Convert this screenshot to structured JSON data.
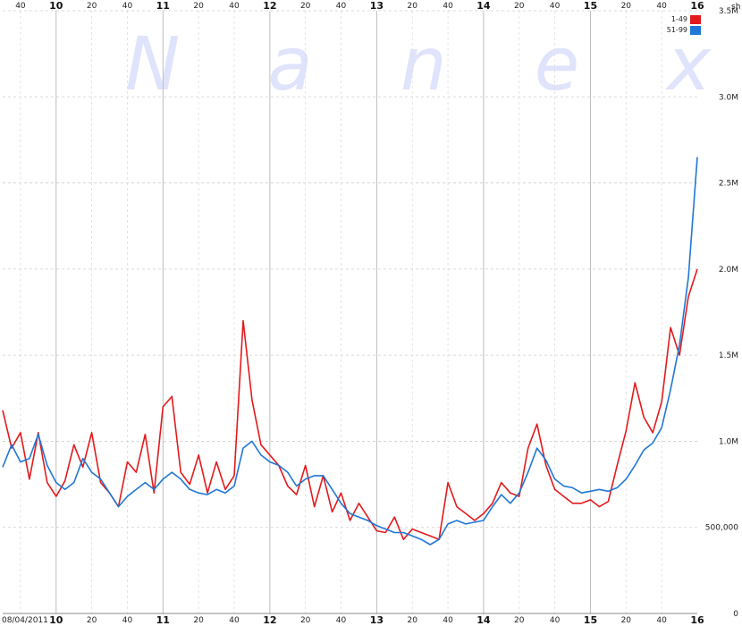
{
  "watermark": "N a n e x",
  "y_unit_label": "sh",
  "date_label": "08/04/2011",
  "chart_data": {
    "type": "line",
    "y_unit": "sh",
    "ylim": [
      0,
      3500000
    ],
    "y_ticks": [
      {
        "value": 0,
        "label": "0"
      },
      {
        "value": 500000,
        "label": "500,000"
      },
      {
        "value": 1000000,
        "label": "1.0M"
      },
      {
        "value": 1500000,
        "label": "1.5M"
      },
      {
        "value": 2000000,
        "label": "2.0M"
      },
      {
        "value": 2500000,
        "label": "2.5M"
      },
      {
        "value": 3000000,
        "label": "3.0M"
      },
      {
        "value": 3500000,
        "label": "3.5M"
      }
    ],
    "x_range_minutes": [
      570,
      960
    ],
    "x_major_ticks": [
      {
        "value": 600,
        "label": "10"
      },
      {
        "value": 660,
        "label": "11"
      },
      {
        "value": 720,
        "label": "12"
      },
      {
        "value": 780,
        "label": "13"
      },
      {
        "value": 840,
        "label": "14"
      },
      {
        "value": 900,
        "label": "15"
      },
      {
        "value": 960,
        "label": "16"
      }
    ],
    "x_minor_ticks": [
      {
        "value": 580,
        "label": "40"
      },
      {
        "value": 620,
        "label": "20"
      },
      {
        "value": 640,
        "label": "40"
      },
      {
        "value": 680,
        "label": "20"
      },
      {
        "value": 700,
        "label": "40"
      },
      {
        "value": 740,
        "label": "20"
      },
      {
        "value": 760,
        "label": "40"
      },
      {
        "value": 800,
        "label": "20"
      },
      {
        "value": 820,
        "label": "40"
      },
      {
        "value": 860,
        "label": "20"
      },
      {
        "value": 880,
        "label": "40"
      },
      {
        "value": 920,
        "label": "20"
      },
      {
        "value": 940,
        "label": "40"
      }
    ],
    "grid": true,
    "legend_position": "top-right",
    "series": [
      {
        "name": "1-49",
        "color": "#e31a1c",
        "x": [
          570,
          575,
          580,
          585,
          590,
          595,
          600,
          605,
          610,
          615,
          620,
          625,
          630,
          635,
          640,
          645,
          650,
          655,
          660,
          665,
          670,
          675,
          680,
          685,
          690,
          695,
          700,
          705,
          710,
          715,
          720,
          725,
          730,
          735,
          740,
          745,
          750,
          755,
          760,
          765,
          770,
          775,
          780,
          785,
          790,
          795,
          800,
          805,
          810,
          815,
          820,
          825,
          830,
          835,
          840,
          845,
          850,
          855,
          860,
          865,
          870,
          875,
          880,
          885,
          890,
          895,
          900,
          905,
          910,
          915,
          920,
          925,
          930,
          935,
          940,
          945,
          950,
          955,
          960
        ],
        "values": [
          1180000,
          960000,
          1050000,
          780000,
          1050000,
          760000,
          680000,
          770000,
          980000,
          850000,
          1050000,
          760000,
          700000,
          620000,
          880000,
          820000,
          1040000,
          700000,
          1200000,
          1260000,
          820000,
          750000,
          920000,
          700000,
          880000,
          720000,
          800000,
          1700000,
          1240000,
          980000,
          920000,
          860000,
          740000,
          690000,
          860000,
          620000,
          800000,
          590000,
          700000,
          540000,
          640000,
          560000,
          480000,
          470000,
          560000,
          430000,
          490000,
          470000,
          450000,
          430000,
          760000,
          620000,
          580000,
          540000,
          580000,
          640000,
          760000,
          700000,
          680000,
          960000,
          1100000,
          860000,
          720000,
          680000,
          640000,
          640000,
          660000,
          620000,
          650000,
          860000,
          1060000,
          1340000,
          1140000,
          1050000,
          1230000,
          1660000,
          1500000,
          1840000,
          2000000
        ]
      },
      {
        "name": "51-99",
        "color": "#1f77d6",
        "x": [
          570,
          575,
          580,
          585,
          590,
          595,
          600,
          605,
          610,
          615,
          620,
          625,
          630,
          635,
          640,
          645,
          650,
          655,
          660,
          665,
          670,
          675,
          680,
          685,
          690,
          695,
          700,
          705,
          710,
          715,
          720,
          725,
          730,
          735,
          740,
          745,
          750,
          755,
          760,
          765,
          770,
          775,
          780,
          785,
          790,
          795,
          800,
          805,
          810,
          815,
          820,
          825,
          830,
          835,
          840,
          845,
          850,
          855,
          860,
          865,
          870,
          875,
          880,
          885,
          890,
          895,
          900,
          905,
          910,
          915,
          920,
          925,
          930,
          935,
          940,
          945,
          950,
          955,
          960
        ],
        "values": [
          850000,
          980000,
          880000,
          900000,
          1040000,
          860000,
          760000,
          720000,
          760000,
          900000,
          820000,
          780000,
          700000,
          620000,
          680000,
          720000,
          760000,
          720000,
          780000,
          820000,
          780000,
          720000,
          700000,
          690000,
          720000,
          700000,
          740000,
          960000,
          1000000,
          920000,
          880000,
          860000,
          820000,
          740000,
          780000,
          800000,
          800000,
          720000,
          640000,
          580000,
          560000,
          540000,
          510000,
          490000,
          470000,
          470000,
          450000,
          430000,
          400000,
          430000,
          520000,
          540000,
          520000,
          530000,
          540000,
          620000,
          690000,
          640000,
          700000,
          820000,
          960000,
          890000,
          780000,
          740000,
          730000,
          700000,
          710000,
          720000,
          710000,
          730000,
          780000,
          860000,
          950000,
          990000,
          1080000,
          1300000,
          1560000,
          1950000,
          2650000
        ]
      }
    ]
  }
}
